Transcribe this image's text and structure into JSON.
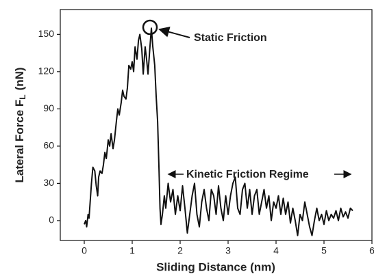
{
  "chart_data": {
    "type": "line",
    "xlabel": "Sliding Distance (nm)",
    "ylabel": {
      "main": "Lateral Force F",
      "subscript": "L",
      "unit": "(nN)"
    },
    "annotations": {
      "static": "Static Friction",
      "kinetic": "Kinetic Friction Regime"
    },
    "x": [
      0,
      0.03,
      0.05,
      0.08,
      0.1,
      0.15,
      0.18,
      0.22,
      0.25,
      0.28,
      0.3,
      0.33,
      0.37,
      0.4,
      0.43,
      0.46,
      0.5,
      0.53,
      0.56,
      0.6,
      0.63,
      0.67,
      0.7,
      0.73,
      0.77,
      0.8,
      0.83,
      0.87,
      0.9,
      0.93,
      0.97,
      1.0,
      1.03,
      1.06,
      1.1,
      1.13,
      1.16,
      1.2,
      1.23,
      1.27,
      1.3,
      1.33,
      1.37,
      1.4,
      1.43,
      1.47,
      1.5,
      1.53,
      1.56,
      1.58,
      1.6,
      1.63,
      1.67,
      1.7,
      1.75,
      1.8,
      1.85,
      1.9,
      1.95,
      2.0,
      2.05,
      2.1,
      2.15,
      2.2,
      2.25,
      2.3,
      2.35,
      2.4,
      2.45,
      2.5,
      2.55,
      2.6,
      2.65,
      2.7,
      2.75,
      2.8,
      2.85,
      2.9,
      2.95,
      3.0,
      3.05,
      3.1,
      3.15,
      3.2,
      3.25,
      3.3,
      3.35,
      3.4,
      3.45,
      3.5,
      3.55,
      3.6,
      3.65,
      3.7,
      3.75,
      3.8,
      3.85,
      3.9,
      3.95,
      4.0,
      4.05,
      4.1,
      4.15,
      4.2,
      4.25,
      4.3,
      4.35,
      4.4,
      4.45,
      4.5,
      4.55,
      4.6,
      4.65,
      4.7,
      4.75,
      4.8,
      4.85,
      4.9,
      4.95,
      5.0,
      5.05,
      5.1,
      5.15,
      5.2,
      5.25,
      5.3,
      5.35,
      5.4,
      5.45,
      5.5,
      5.55,
      5.6
    ],
    "series": [
      {
        "color": "#111111",
        "values": [
          -3,
          0,
          -5,
          5,
          2,
          30,
          43,
          40,
          28,
          20,
          35,
          40,
          38,
          45,
          55,
          50,
          65,
          60,
          70,
          58,
          65,
          80,
          90,
          85,
          95,
          105,
          100,
          98,
          107,
          125,
          122,
          128,
          120,
          140,
          130,
          145,
          150,
          138,
          118,
          140,
          130,
          118,
          140,
          155,
          140,
          125,
          100,
          80,
          40,
          10,
          -3,
          5,
          20,
          10,
          30,
          15,
          25,
          5,
          20,
          8,
          28,
          10,
          -10,
          5,
          20,
          30,
          5,
          -5,
          15,
          25,
          10,
          0,
          25,
          20,
          5,
          28,
          10,
          0,
          20,
          5,
          20,
          30,
          35,
          10,
          5,
          25,
          30,
          10,
          25,
          5,
          20,
          25,
          5,
          15,
          25,
          10,
          20,
          0,
          15,
          10,
          20,
          5,
          18,
          5,
          15,
          -2,
          10,
          0,
          -12,
          5,
          0,
          15,
          5,
          -5,
          -12,
          0,
          10,
          0,
          5,
          -3,
          8,
          0,
          5,
          2,
          8,
          0,
          10,
          3,
          7,
          2,
          10,
          8
        ]
      }
    ],
    "xlim": [
      -0.5,
      6
    ],
    "xticks": [
      0,
      1,
      2,
      3,
      4,
      5,
      6
    ],
    "ylim": [
      -16,
      170
    ],
    "yticks": [
      0,
      30,
      60,
      90,
      120,
      150
    ]
  }
}
